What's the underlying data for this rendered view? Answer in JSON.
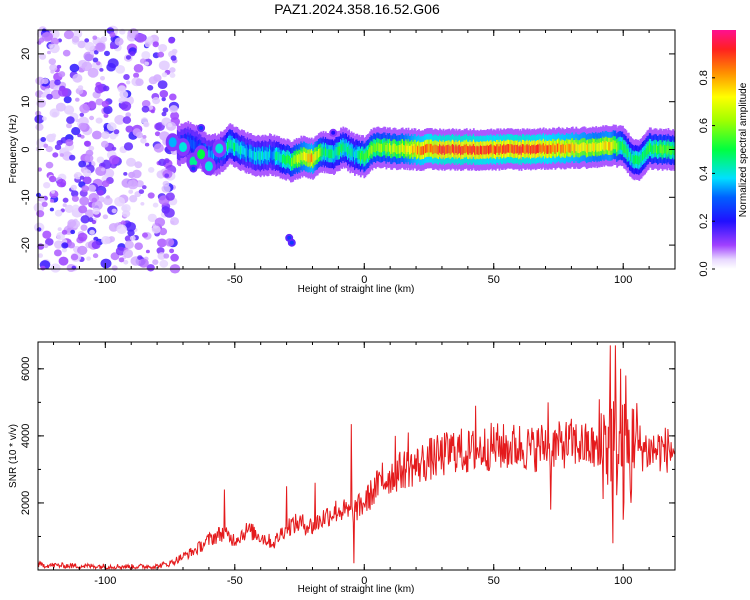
{
  "title": "PAZ1.2024.358.16.52.G06",
  "chart_data": [
    {
      "type": "heatmap",
      "xlabel": "Height of straight line (km)",
      "ylabel": "Frequency (Hz)",
      "xlim": [
        -126,
        120
      ],
      "ylim": [
        -25,
        25
      ],
      "xticks": [
        -100,
        -50,
        0,
        50,
        100
      ],
      "yticks": [
        20,
        10,
        0,
        -10,
        -20
      ],
      "colorbar": {
        "label": "Normalized spectral amplitude",
        "range": [
          0,
          1
        ],
        "ticks": [
          "0.0",
          "0.2",
          "0.4",
          "0.6",
          "0.8"
        ],
        "tick_values": [
          0.0,
          0.2,
          0.4,
          0.6,
          0.8
        ]
      },
      "ridge": {
        "x": [
          -72,
          -68,
          -64,
          -60,
          -56,
          -52,
          -48,
          -44,
          -40,
          -36,
          -32,
          -28,
          -24,
          -20,
          -16,
          -12,
          -8,
          -4,
          0,
          4,
          8,
          12,
          16,
          20,
          30,
          40,
          50,
          60,
          70,
          80,
          90,
          95,
          100,
          103,
          106,
          110,
          115,
          120
        ],
        "freq": [
          0.8,
          1.5,
          0.5,
          -1.2,
          -1.0,
          1.2,
          0.0,
          -1.0,
          -1.5,
          -1.0,
          -1.8,
          -2.5,
          -1.5,
          -2.0,
          -0.5,
          -1.0,
          0.5,
          -1.0,
          -1.5,
          0.5,
          0.3,
          0.2,
          0.2,
          0.0,
          0.0,
          0.0,
          0.0,
          0.0,
          0.2,
          0.3,
          0.5,
          0.8,
          0.6,
          -1.5,
          -2.5,
          0.2,
          0.0,
          0.0
        ],
        "amp": [
          0.2,
          0.3,
          0.25,
          0.35,
          0.3,
          0.5,
          0.4,
          0.35,
          0.4,
          0.35,
          0.45,
          0.55,
          0.7,
          0.8,
          0.5,
          0.45,
          0.5,
          0.4,
          0.55,
          0.6,
          0.6,
          0.65,
          0.7,
          0.8,
          0.9,
          0.9,
          0.85,
          0.9,
          0.85,
          0.8,
          0.7,
          0.75,
          0.5,
          0.45,
          0.45,
          0.5,
          0.55,
          0.5
        ]
      },
      "noise_region": {
        "x_range": [
          -126,
          -73
        ],
        "freq_range": [
          -25,
          25
        ]
      },
      "features": [
        {
          "x": -29,
          "freq": -18.5,
          "amp": 0.25
        },
        {
          "x": -28,
          "freq": -19.5,
          "amp": 0.25
        },
        {
          "x": -12,
          "freq": 3.5,
          "amp": 0.2
        },
        {
          "x": -63,
          "freq": 4.5,
          "amp": 0.25
        },
        {
          "x": -66,
          "freq": -4.0,
          "amp": 0.25
        }
      ]
    },
    {
      "type": "line",
      "xlabel": "Height of straight line (km)",
      "ylabel": "SNR (10 * v/v)",
      "xlim": [
        -126,
        120
      ],
      "ylim": [
        0,
        6800
      ],
      "xticks": [
        -100,
        -50,
        0,
        50,
        100
      ],
      "yticks": [
        2000,
        4000,
        6000
      ],
      "color": "#e41a1c",
      "series": [
        {
          "x": [
            -126,
            -110,
            -90,
            -80,
            -75,
            -70,
            -65,
            -60,
            -55,
            -50,
            -45,
            -40,
            -35,
            -30,
            -25,
            -20,
            -15,
            -10,
            -5,
            0,
            5,
            10,
            15,
            20,
            25,
            30,
            35,
            40,
            45,
            50,
            55,
            60,
            65,
            70,
            75,
            80,
            85,
            90,
            95,
            100,
            104,
            106,
            110,
            115,
            120
          ],
          "y": [
            150,
            120,
            100,
            110,
            200,
            400,
            600,
            900,
            1100,
            900,
            1200,
            1000,
            800,
            1300,
            1400,
            1300,
            1600,
            1800,
            1700,
            2000,
            2500,
            2800,
            3000,
            3100,
            3300,
            3400,
            3600,
            3500,
            3600,
            3700,
            3650,
            3700,
            3600,
            3750,
            3700,
            3800,
            3700,
            3600,
            3900,
            3500,
            3600,
            3700,
            3550,
            3600,
            3580
          ]
        }
      ]
    }
  ]
}
